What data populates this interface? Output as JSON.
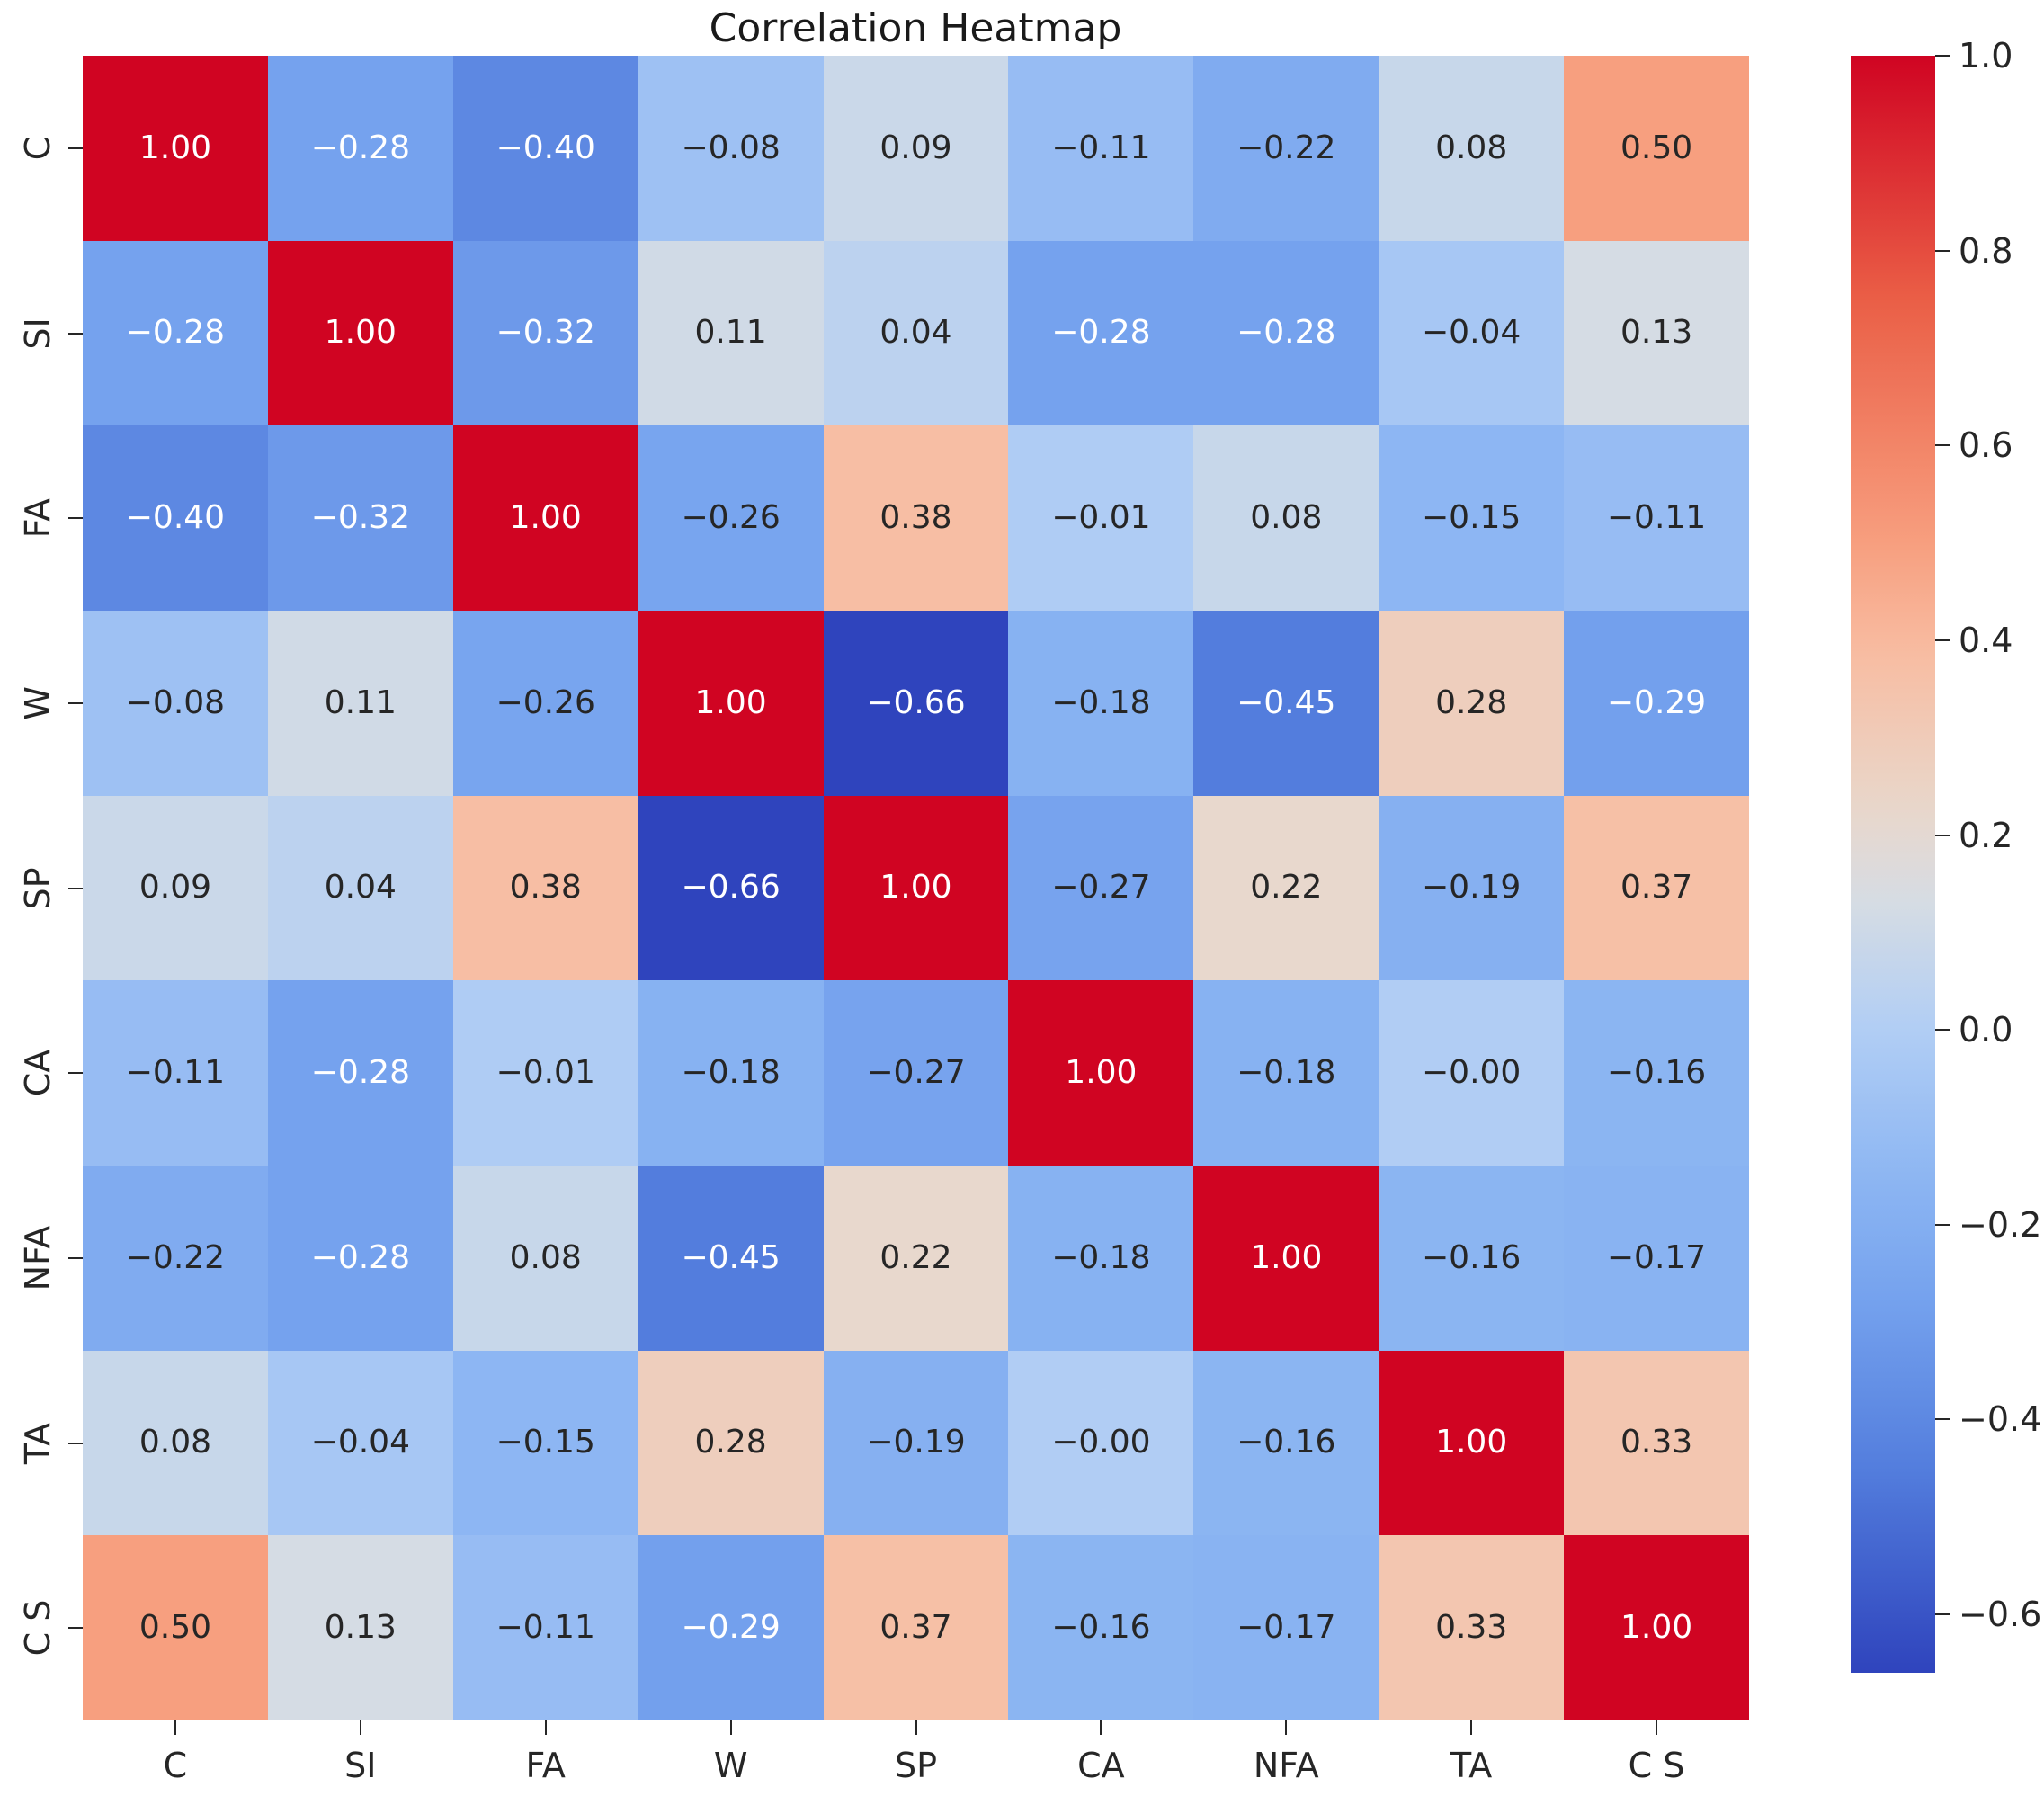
{
  "title": "Correlation Heatmap",
  "axes": {
    "x_labels": [
      "C",
      "SI",
      "FA",
      "W",
      "SP",
      "CA",
      "NFA",
      "TA",
      "C S"
    ],
    "y_labels": [
      "C",
      "SI",
      "FA",
      "W",
      "SP",
      "CA",
      "NFA",
      "TA",
      "C S"
    ]
  },
  "colorbar": {
    "ticks": [
      "1.0",
      "0.8",
      "0.6",
      "0.4",
      "0.2",
      "0.0",
      "−0.2",
      "−0.4",
      "−0.6"
    ],
    "tick_values": [
      1.0,
      0.8,
      0.6,
      0.4,
      0.2,
      0.0,
      -0.2,
      -0.4,
      -0.6
    ],
    "vmin": -0.66,
    "vmax": 1.0
  },
  "colors": {
    "background": "#ffffff",
    "annot_dark": "#262626",
    "annot_light": "#ffffff",
    "tick_color": "#262626",
    "cmap_name": "coolwarm",
    "cmap_stops": [
      [
        0.0,
        47,
        68,
        189
      ],
      [
        0.13,
        84,
        127,
        222
      ],
      [
        0.23,
        117,
        162,
        238
      ],
      [
        0.31,
        142,
        183,
        243
      ],
      [
        0.4,
        178,
        206,
        244
      ],
      [
        0.475,
        213,
        220,
        228
      ],
      [
        0.53,
        232,
        216,
        205
      ],
      [
        0.63,
        248,
        189,
        162
      ],
      [
        0.7,
        247,
        158,
        126
      ],
      [
        0.85,
        234,
        94,
        70
      ],
      [
        1.0,
        208,
        4,
        34
      ]
    ]
  },
  "chart_data": {
    "type": "heatmap",
    "title": "Correlation Heatmap",
    "x": [
      "C",
      "SI",
      "FA",
      "W",
      "SP",
      "CA",
      "NFA",
      "TA",
      "C S"
    ],
    "y": [
      "C",
      "SI",
      "FA",
      "W",
      "SP",
      "CA",
      "NFA",
      "TA",
      "C S"
    ],
    "vmin": -0.66,
    "vmax": 1.0,
    "colormap": "coolwarm",
    "matrix": [
      [
        1.0,
        -0.28,
        -0.4,
        -0.08,
        0.09,
        -0.11,
        -0.22,
        0.08,
        0.5
      ],
      [
        -0.28,
        1.0,
        -0.32,
        0.11,
        0.04,
        -0.28,
        -0.28,
        -0.04,
        0.13
      ],
      [
        -0.4,
        -0.32,
        1.0,
        -0.26,
        0.38,
        -0.01,
        0.08,
        -0.15,
        -0.11
      ],
      [
        -0.08,
        0.11,
        -0.26,
        1.0,
        -0.66,
        -0.18,
        -0.45,
        0.28,
        -0.29
      ],
      [
        0.09,
        0.04,
        0.38,
        -0.66,
        1.0,
        -0.27,
        0.22,
        -0.19,
        0.37
      ],
      [
        -0.11,
        -0.28,
        -0.01,
        -0.18,
        -0.27,
        1.0,
        -0.18,
        -0.0,
        -0.16
      ],
      [
        -0.22,
        -0.28,
        0.08,
        -0.45,
        0.22,
        -0.18,
        1.0,
        -0.16,
        -0.17
      ],
      [
        0.08,
        -0.04,
        -0.15,
        0.28,
        -0.19,
        -0.0,
        -0.16,
        1.0,
        0.33
      ],
      [
        0.5,
        0.13,
        -0.11,
        -0.29,
        0.37,
        -0.16,
        -0.17,
        0.33,
        1.0
      ]
    ],
    "annotations": [
      [
        "1.00",
        "-0.28",
        "-0.40",
        "-0.08",
        "0.09",
        "-0.11",
        "-0.22",
        "0.08",
        "0.50"
      ],
      [
        "-0.28",
        "1.00",
        "-0.32",
        "0.11",
        "0.04",
        "-0.28",
        "-0.28",
        "-0.04",
        "0.13"
      ],
      [
        "-0.40",
        "-0.32",
        "1.00",
        "-0.26",
        "0.38",
        "-0.01",
        "0.08",
        "-0.15",
        "-0.11"
      ],
      [
        "-0.08",
        "0.11",
        "-0.26",
        "1.00",
        "-0.66",
        "-0.18",
        "-0.45",
        "0.28",
        "-0.29"
      ],
      [
        "0.09",
        "0.04",
        "0.38",
        "-0.66",
        "1.00",
        "-0.27",
        "0.22",
        "-0.19",
        "0.37"
      ],
      [
        "-0.11",
        "-0.28",
        "-0.01",
        "-0.18",
        "-0.27",
        "1.00",
        "-0.18",
        "-0.00",
        "-0.16"
      ],
      [
        "-0.22",
        "-0.28",
        "0.08",
        "-0.45",
        "0.22",
        "-0.18",
        "1.00",
        "-0.16",
        "-0.17"
      ],
      [
        "0.08",
        "-0.04",
        "-0.15",
        "0.28",
        "-0.19",
        "-0.00",
        "-0.16",
        "1.00",
        "0.33"
      ],
      [
        "0.50",
        "0.13",
        "-0.11",
        "-0.29",
        "0.37",
        "-0.16",
        "-0.17",
        "0.33",
        "1.00"
      ]
    ]
  }
}
